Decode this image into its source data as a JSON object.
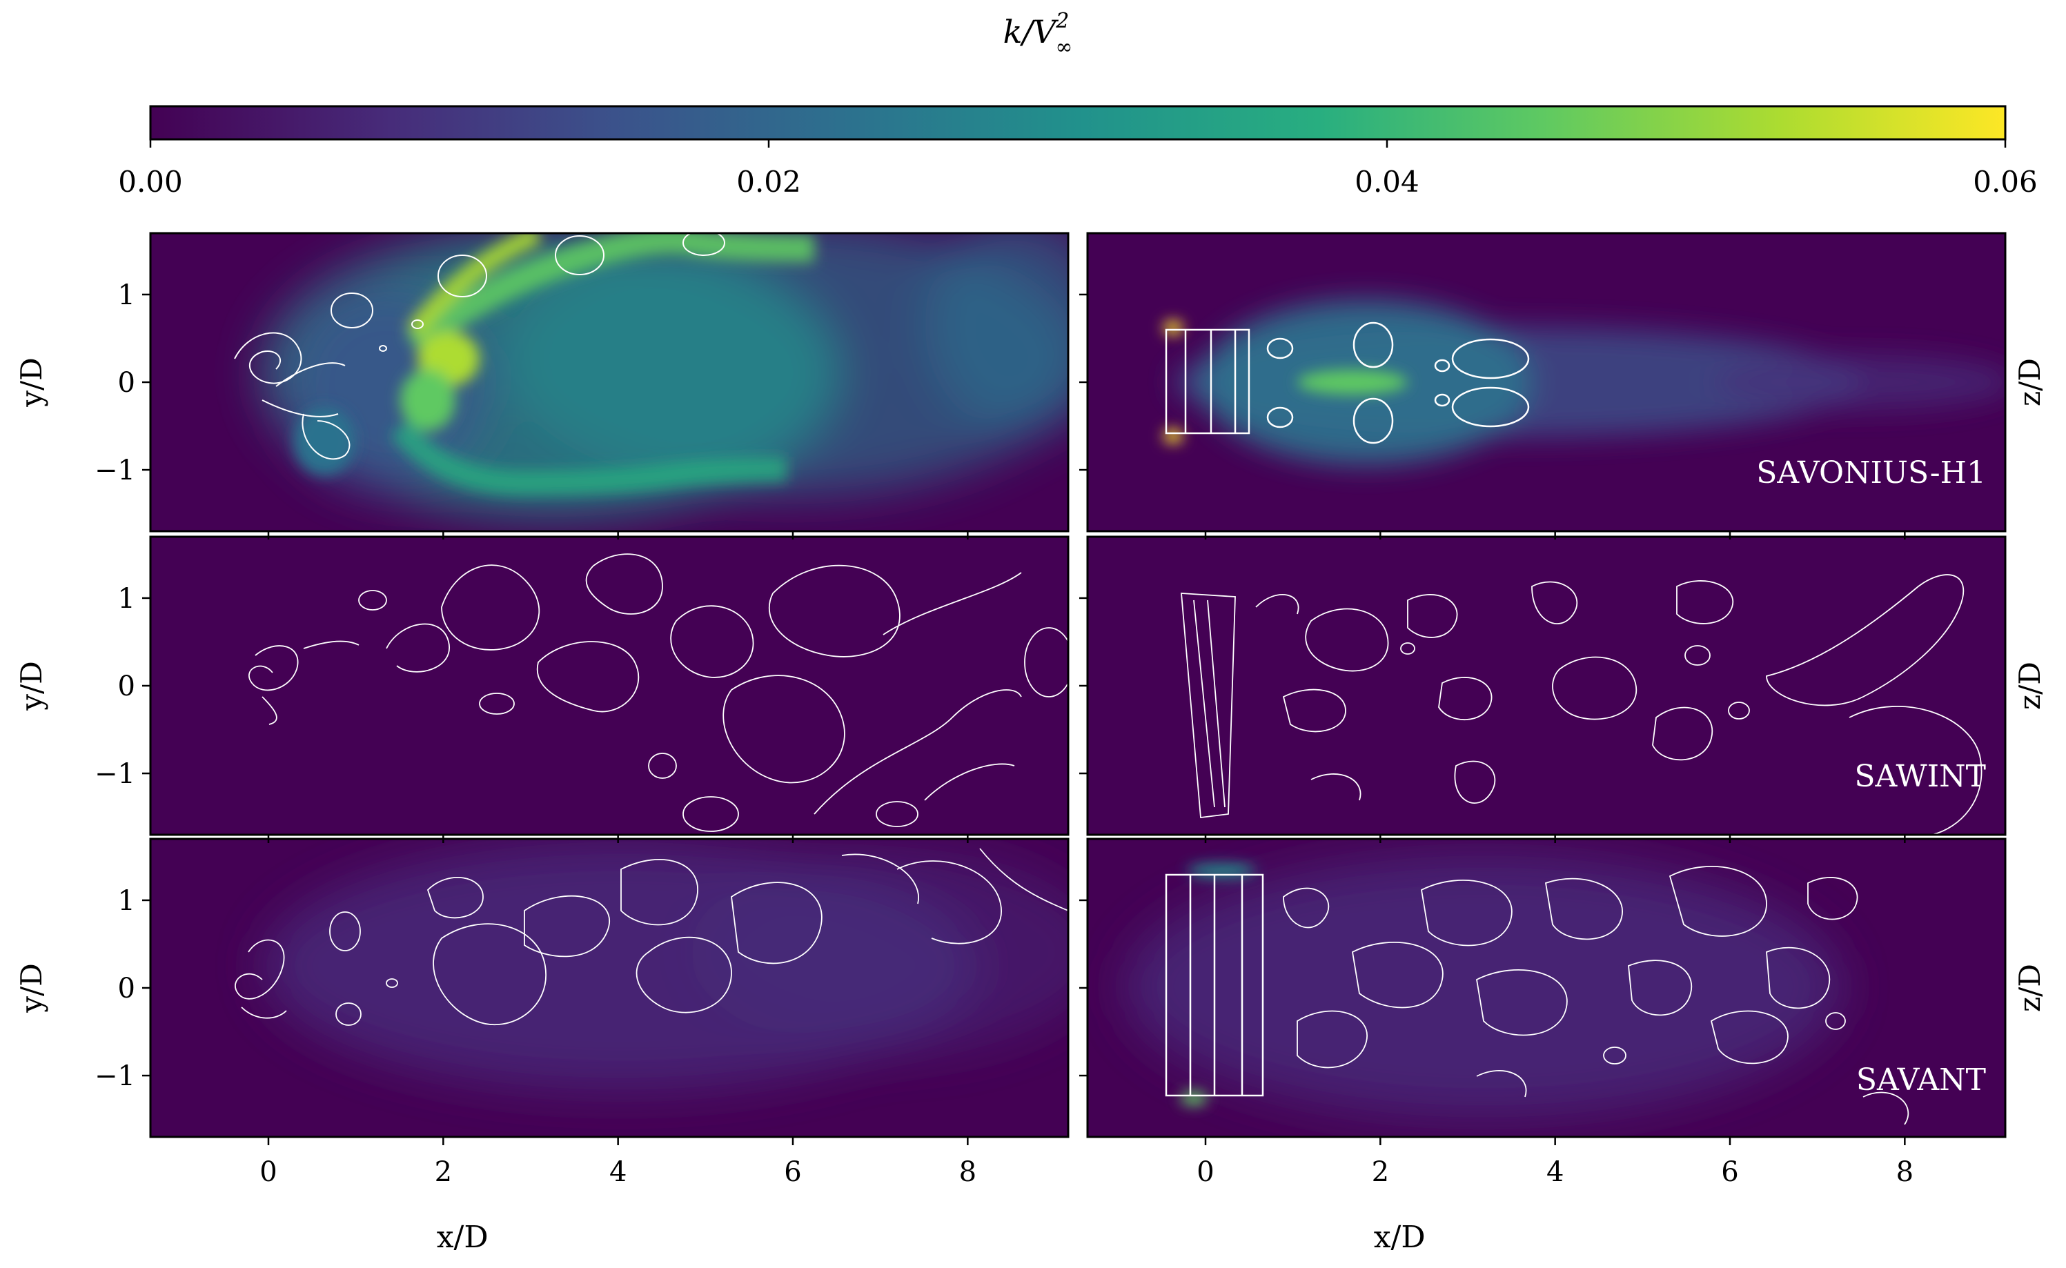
{
  "chart_data": {
    "type": "heatmap",
    "colorbar": {
      "label": "k/V∞²",
      "label_main": "k/V",
      "label_sup": "2",
      "label_sub": "∞",
      "ticks": [
        "0.00",
        "0.02",
        "0.04",
        "0.06"
      ],
      "range": [
        0,
        0.06
      ],
      "colormap": "viridis",
      "colors": [
        "#440154",
        "#3b528b",
        "#21918c",
        "#5ec962",
        "#fde725"
      ],
      "placement": "top"
    },
    "x_axis": {
      "label": "x/D",
      "range_left": [
        -1.35,
        9.15
      ],
      "range_right": [
        -1.35,
        9.15
      ],
      "tick_values": [
        0,
        2,
        4,
        6,
        8
      ],
      "tick_labels": [
        "0",
        "2",
        "4",
        "6",
        "8"
      ]
    },
    "y_axis": {
      "label_left": "y/D",
      "label_right": "z/D",
      "range": [
        -1.7,
        1.7
      ],
      "tick_values": [
        1,
        0,
        -1
      ],
      "tick_labels": [
        "1",
        "0",
        "−1"
      ]
    },
    "panels": [
      {
        "row": 1,
        "col": 1,
        "plane": "x-y",
        "case": "",
        "field_level": "high"
      },
      {
        "row": 1,
        "col": 2,
        "plane": "x-z",
        "case": "SAVONIUS-H1",
        "field_level": "medium"
      },
      {
        "row": 2,
        "col": 1,
        "plane": "x-y",
        "case": "",
        "field_level": "near-zero"
      },
      {
        "row": 2,
        "col": 2,
        "plane": "x-z",
        "case": "SAWINT",
        "field_level": "near-zero"
      },
      {
        "row": 3,
        "col": 1,
        "plane": "x-y",
        "case": "",
        "field_level": "low"
      },
      {
        "row": 3,
        "col": 2,
        "plane": "x-z",
        "case": "SAVANT",
        "field_level": "low"
      }
    ]
  }
}
